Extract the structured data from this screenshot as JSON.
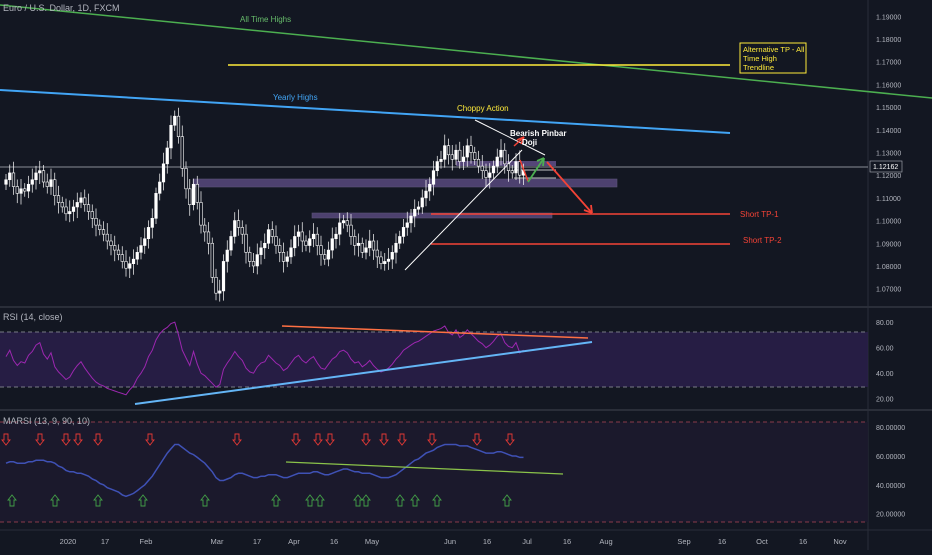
{
  "header": {
    "symbol_title": "Euro / U.S. Dollar, 1D, FXCM"
  },
  "price_axis": {
    "ticks": [
      "1.19000",
      "1.18000",
      "1.17000",
      "1.16000",
      "1.15000",
      "1.14000",
      "1.13000",
      "1.12000",
      "1.11000",
      "1.10000",
      "1.09000",
      "1.08000",
      "1.07000"
    ],
    "current_price_label": "1.12162"
  },
  "time_axis": {
    "ticks": [
      "2020",
      "17",
      "Feb",
      "Mar",
      "17",
      "Apr",
      "16",
      "May",
      "Jun",
      "16",
      "Jul",
      "16",
      "Aug",
      "Sep",
      "16",
      "Oct",
      "16",
      "Nov"
    ]
  },
  "annotations": {
    "all_time_highs": "All Time Highs",
    "yearly_highs": "Yearly Highs",
    "choppy_action": "Choppy Action",
    "bearish_pinbar": "Bearish Pinbar",
    "doji": "Doji",
    "alt_tp_line1": "Alternative TP - All",
    "alt_tp_line2": "Time High",
    "alt_tp_line3": "Trendline",
    "short_tp1": "Short TP-1",
    "short_tp2": "Short TP-2"
  },
  "rsi_pane": {
    "title": "RSI (14, close)",
    "ticks": [
      "80.00",
      "60.00",
      "40.00",
      "20.00"
    ]
  },
  "marsi_pane": {
    "title": "MARSI (13, 9, 90, 10)",
    "ticks": [
      "80.00000",
      "60.00000",
      "40.00000",
      "20.00000"
    ]
  },
  "colors": {
    "background": "#131722",
    "candle": "#ffffff",
    "all_time_high_trendline": "#4caf50",
    "yearly_high_trendline": "#42a5f5",
    "tp_line_yellow": "#ffeb3b",
    "short_tp_lines": "#f44336",
    "rsi_band_fill": "#2a1e4a",
    "rsi_line": "#9c27b0",
    "marsi_line": "#3f51b5"
  },
  "chart_data": [
    {
      "type": "candlestick",
      "title": "Euro / U.S. Dollar, 1D, FXCM",
      "ylim": [
        1.065,
        1.195
      ],
      "x_range": [
        "2020-01-01",
        "2020-11-20"
      ],
      "grid": false,
      "last_price": 1.12162,
      "closes": [
        1.118,
        1.121,
        1.115,
        1.112,
        1.114,
        1.113,
        1.116,
        1.118,
        1.121,
        1.122,
        1.117,
        1.115,
        1.118,
        1.111,
        1.108,
        1.106,
        1.103,
        1.104,
        1.106,
        1.108,
        1.11,
        1.107,
        1.104,
        1.101,
        1.098,
        1.096,
        1.094,
        1.091,
        1.089,
        1.087,
        1.085,
        1.082,
        1.079,
        1.081,
        1.083,
        1.086,
        1.089,
        1.092,
        1.097,
        1.101,
        1.112,
        1.117,
        1.125,
        1.132,
        1.142,
        1.146,
        1.137,
        1.123,
        1.114,
        1.107,
        1.116,
        1.108,
        1.098,
        1.095,
        1.09,
        1.075,
        1.068,
        1.069,
        1.082,
        1.087,
        1.093,
        1.1,
        1.097,
        1.094,
        1.086,
        1.082,
        1.08,
        1.085,
        1.088,
        1.09,
        1.096,
        1.093,
        1.089,
        1.086,
        1.082,
        1.084,
        1.088,
        1.093,
        1.095,
        1.091,
        1.089,
        1.092,
        1.094,
        1.089,
        1.085,
        1.083,
        1.087,
        1.092,
        1.094,
        1.099,
        1.1,
        1.098,
        1.093,
        1.089,
        1.09,
        1.086,
        1.088,
        1.091,
        1.087,
        1.084,
        1.081,
        1.082,
        1.083,
        1.086,
        1.09,
        1.093,
        1.097,
        1.099,
        1.102,
        1.105,
        1.106,
        1.11,
        1.113,
        1.116,
        1.122,
        1.126,
        1.127,
        1.133,
        1.129,
        1.127,
        1.131,
        1.126,
        1.128,
        1.133,
        1.13,
        1.127,
        1.124,
        1.122,
        1.119,
        1.121,
        1.124,
        1.128,
        1.131,
        1.125,
        1.122,
        1.121,
        1.126,
        1.12,
        1.122
      ],
      "levels": [
        {
          "name": "Short TP-1",
          "value": 1.102
        },
        {
          "name": "Short TP-2",
          "value": 1.089
        }
      ]
    },
    {
      "type": "line",
      "title": "RSI (14, close)",
      "ylim": [
        15,
        88
      ],
      "values": [
        53,
        58,
        50,
        46,
        49,
        48,
        54,
        57,
        62,
        64,
        55,
        51,
        56,
        45,
        41,
        38,
        35,
        37,
        42,
        46,
        49,
        44,
        40,
        36,
        33,
        31,
        30,
        28,
        27,
        26,
        25,
        24,
        23,
        27,
        30,
        36,
        40,
        45,
        53,
        58,
        66,
        71,
        74,
        76,
        79,
        80,
        70,
        58,
        52,
        46,
        57,
        47,
        40,
        38,
        35,
        32,
        29,
        31,
        43,
        48,
        52,
        57,
        53,
        50,
        44,
        41,
        40,
        45,
        48,
        49,
        54,
        51,
        48,
        46,
        42,
        44,
        48,
        52,
        54,
        50,
        48,
        51,
        53,
        48,
        44,
        43,
        47,
        51,
        53,
        57,
        58,
        56,
        51,
        48,
        49,
        45,
        47,
        50,
        46,
        43,
        41,
        42,
        44,
        47,
        51,
        54,
        58,
        60,
        62,
        64,
        65,
        67,
        69,
        71,
        73,
        74,
        75,
        77,
        72,
        70,
        74,
        68,
        70,
        74,
        71,
        68,
        65,
        63,
        60,
        62,
        65,
        69,
        71,
        64,
        61,
        60,
        64,
        56,
        58
      ]
    },
    {
      "type": "line",
      "title": "MARSI (13, 9, 90, 10)",
      "ylim": [
        10,
        85
      ],
      "values": [
        55,
        56,
        56,
        55,
        55,
        55,
        56,
        56,
        57,
        57,
        57,
        56,
        56,
        55,
        53,
        52,
        50,
        49,
        49,
        48,
        48,
        47,
        46,
        44,
        43,
        41,
        40,
        38,
        37,
        36,
        35,
        33,
        32,
        33,
        34,
        36,
        38,
        40,
        43,
        46,
        50,
        54,
        58,
        62,
        65,
        68,
        68,
        66,
        64,
        62,
        61,
        59,
        57,
        55,
        52,
        49,
        45,
        43,
        43,
        44,
        45,
        47,
        48,
        48,
        47,
        46,
        45,
        45,
        46,
        46,
        47,
        47,
        47,
        46,
        45,
        45,
        46,
        47,
        48,
        48,
        48,
        48,
        49,
        49,
        48,
        47,
        47,
        48,
        49,
        50,
        51,
        51,
        50,
        49,
        49,
        48,
        48,
        48,
        47,
        46,
        45,
        45,
        45,
        46,
        47,
        49,
        51,
        53,
        55,
        57,
        58,
        60,
        62,
        63,
        64,
        66,
        67,
        68,
        68,
        68,
        68,
        67,
        67,
        67,
        66,
        65,
        64,
        63,
        62,
        62,
        62,
        63,
        63,
        62,
        61,
        60,
        60,
        59,
        59
      ]
    }
  ]
}
